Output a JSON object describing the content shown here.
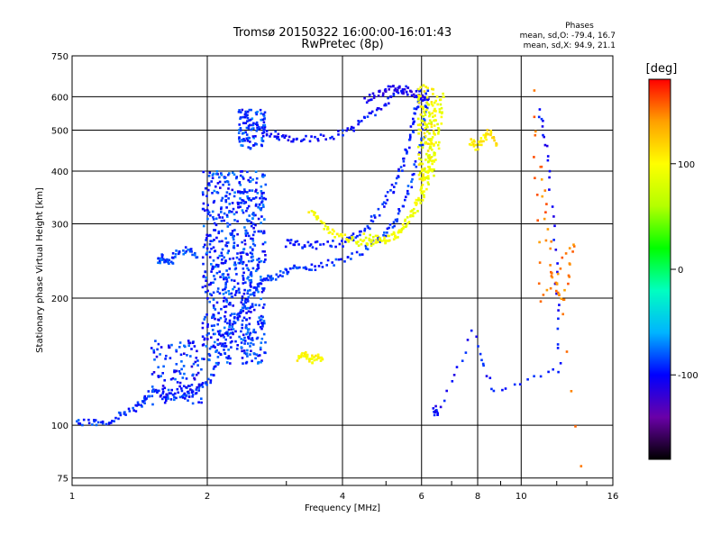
{
  "chart_data": {
    "type": "scatter",
    "title": "Tromsø 20150322 16:00:00-16:01:43",
    "subtitle": "RwPretec (8p)",
    "xlabel": "Frequency [MHz]",
    "ylabel": "Stationary phase Virtual Height [km]",
    "x_scale": "log",
    "y_scale": "log",
    "xlim": [
      1,
      16
    ],
    "ylim": [
      72,
      750
    ],
    "x_ticks": [
      1,
      2,
      4,
      6,
      8,
      10,
      16
    ],
    "x_tick_labels": [
      "1",
      "2",
      "4",
      "6",
      "8",
      "10",
      "16"
    ],
    "y_ticks": [
      75,
      100,
      200,
      300,
      400,
      500,
      600,
      750
    ],
    "y_tick_labels": [
      "75",
      "100",
      "200",
      "300",
      "400",
      "500",
      "600",
      "750"
    ],
    "grid": true,
    "phases_info": {
      "heading": "Phases",
      "line_o": "mean, sd,O: -79.4, 16.7",
      "line_x": "mean, sd,X:  94.9, 21.1"
    },
    "colorbar": {
      "label": "[deg]",
      "min": -180,
      "max": 180,
      "ticks": [
        100,
        0,
        -100
      ],
      "tick_labels": [
        "100",
        "0",
        "-100"
      ],
      "colors": [
        "#000000",
        "#6a00a8",
        "#0000ff",
        "#00b4ff",
        "#00ffc0",
        "#00ff00",
        "#b4ff00",
        "#ffff00",
        "#ffa000",
        "#ff0000"
      ]
    },
    "series": [
      {
        "phase": -90,
        "points": [
          [
            1.0,
            102
          ],
          [
            1.1,
            101
          ],
          [
            1.2,
            102
          ],
          [
            1.3,
            107
          ],
          [
            1.4,
            110
          ],
          [
            1.45,
            115
          ],
          [
            1.5,
            120
          ],
          [
            1.6,
            118
          ],
          [
            1.7,
            117
          ],
          [
            1.8,
            118
          ],
          [
            1.9,
            121
          ],
          [
            2.0,
            125
          ],
          [
            2.1,
            140
          ],
          [
            2.2,
            160
          ],
          [
            2.3,
            175
          ],
          [
            2.4,
            190
          ],
          [
            2.5,
            205
          ],
          [
            2.6,
            215
          ],
          [
            2.7,
            222
          ],
          [
            2.8,
            225
          ],
          [
            3.0,
            232
          ],
          [
            3.2,
            236
          ],
          [
            3.5,
            238
          ],
          [
            4.0,
            245
          ],
          [
            4.5,
            260
          ],
          [
            5.0,
            285
          ],
          [
            5.3,
            310
          ],
          [
            5.6,
            360
          ],
          [
            5.9,
            430
          ],
          [
            6.1,
            520
          ],
          [
            6.2,
            620
          ]
        ]
      },
      {
        "phase": -95,
        "points": [
          [
            3.0,
            270
          ],
          [
            3.2,
            268
          ],
          [
            3.5,
            267
          ],
          [
            4.0,
            270
          ],
          [
            4.3,
            280
          ],
          [
            4.6,
            300
          ],
          [
            5.0,
            340
          ],
          [
            5.3,
            380
          ],
          [
            5.5,
            430
          ],
          [
            5.7,
            490
          ],
          [
            5.85,
            560
          ],
          [
            5.95,
            620
          ]
        ]
      },
      {
        "phase": -100,
        "points": [
          [
            2.4,
            550
          ],
          [
            2.5,
            515
          ],
          [
            2.7,
            495
          ],
          [
            2.9,
            484
          ],
          [
            3.1,
            478
          ],
          [
            3.5,
            478
          ],
          [
            4.0,
            490
          ],
          [
            4.4,
            520
          ],
          [
            4.8,
            560
          ],
          [
            5.2,
            600
          ],
          [
            5.6,
            630
          ]
        ]
      },
      {
        "phase": -110,
        "points": [
          [
            4.5,
            590
          ],
          [
            4.8,
            610
          ],
          [
            5.1,
            630
          ],
          [
            5.4,
            625
          ],
          [
            5.7,
            615
          ],
          [
            6.0,
            600
          ],
          [
            6.2,
            590
          ]
        ]
      },
      {
        "phase": 95,
        "points": [
          [
            3.4,
            320
          ],
          [
            3.6,
            300
          ],
          [
            3.8,
            285
          ],
          [
            4.0,
            278
          ],
          [
            4.3,
            272
          ],
          [
            4.6,
            270
          ],
          [
            5.0,
            275
          ],
          [
            5.4,
            290
          ],
          [
            5.8,
            330
          ],
          [
            6.0,
            360
          ],
          [
            6.2,
            400
          ],
          [
            6.3,
            450
          ],
          [
            6.4,
            520
          ],
          [
            6.5,
            600
          ]
        ]
      },
      {
        "phase": 90,
        "points": [
          [
            4.5,
            280
          ],
          [
            4.8,
            275
          ],
          [
            5.2,
            280
          ],
          [
            5.6,
            300
          ],
          [
            6.0,
            340
          ],
          [
            6.3,
            400
          ],
          [
            6.5,
            460
          ],
          [
            6.6,
            540
          ],
          [
            6.7,
            610
          ]
        ]
      },
      {
        "phase": 100,
        "points": [
          [
            3.2,
            145
          ],
          [
            3.3,
            148
          ],
          [
            3.4,
            142
          ],
          [
            3.5,
            146
          ],
          [
            3.6,
            144
          ]
        ]
      },
      {
        "phase": 110,
        "points": [
          [
            7.7,
            470
          ],
          [
            8.0,
            455
          ],
          [
            8.3,
            480
          ],
          [
            8.5,
            500
          ],
          [
            8.8,
            460
          ]
        ]
      },
      {
        "phase": -85,
        "points": [
          [
            1.55,
            245
          ],
          [
            1.6,
            250
          ],
          [
            1.65,
            240
          ],
          [
            1.7,
            255
          ],
          [
            1.8,
            260
          ],
          [
            1.9,
            250
          ]
        ]
      },
      {
        "phase": -100,
        "points": [
          [
            6.4,
            110
          ],
          [
            6.5,
            105
          ],
          [
            7.8,
            165
          ],
          [
            8.7,
            120
          ],
          [
            12.2,
            135
          ],
          [
            12.0,
            230
          ],
          [
            11.5,
            430
          ],
          [
            11.0,
            560
          ]
        ]
      },
      {
        "phase": 150,
        "points": [
          [
            11.1,
            410
          ],
          [
            11.6,
            230
          ],
          [
            12.4,
            195
          ],
          [
            13.1,
            270
          ],
          [
            11.0,
            195
          ],
          [
            10.6,
            610
          ],
          [
            13.6,
            80
          ]
        ]
      }
    ],
    "clusters": [
      {
        "x": [
          1.5,
          1.95
        ],
        "y": [
          112,
          160
        ],
        "phase": -95,
        "n": 120
      },
      {
        "x": [
          1.95,
          2.7
        ],
        "y": [
          140,
          400
        ],
        "phase": -90,
        "n": 700
      },
      {
        "x": [
          2.35,
          2.7
        ],
        "y": [
          450,
          560
        ],
        "phase": -85,
        "n": 90
      },
      {
        "x": [
          5.9,
          6.4
        ],
        "y": [
          380,
          640
        ],
        "phase": 95,
        "n": 120
      }
    ]
  }
}
